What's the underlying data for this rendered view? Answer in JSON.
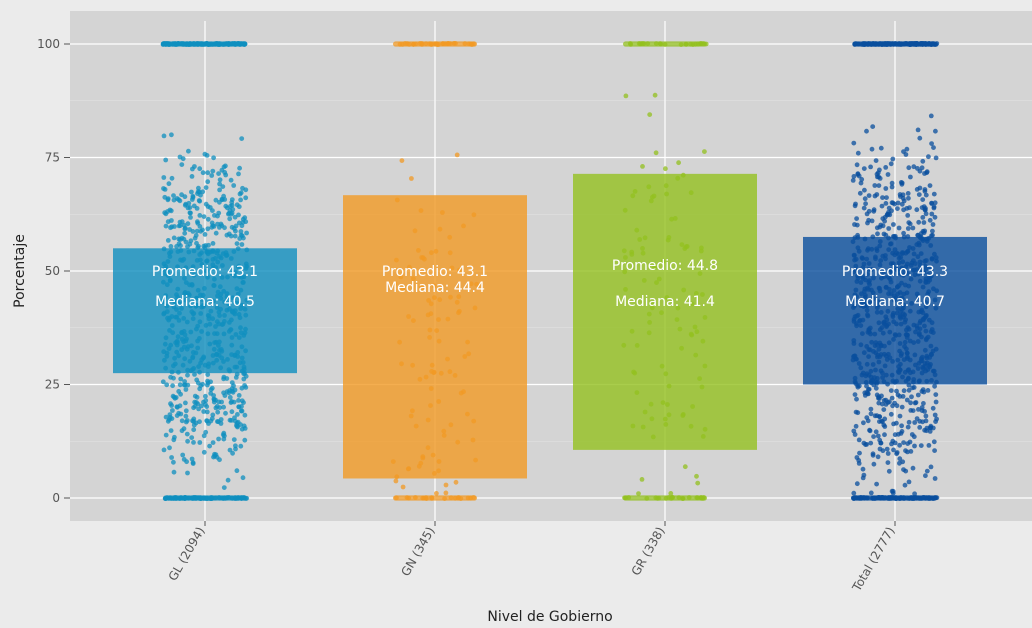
{
  "chart_data": {
    "type": "box",
    "xlabel": "Nivel de Gobierno",
    "ylabel": "Porcentaje",
    "ylim": [
      -10,
      105
    ],
    "y_ticks": [
      0,
      25,
      50,
      75,
      100
    ],
    "grid": true,
    "categories": [
      "GL (2094)",
      "GN (345)",
      "GR (338)",
      "Total (2777)"
    ],
    "boxes": [
      {
        "category": "GL (2094)",
        "q1": 27.5,
        "q3": 55.0,
        "mean": 43.1,
        "median": 40.5,
        "mean_label": "Promedio: 43.1",
        "median_label": "Mediana: 40.5",
        "n": 2094,
        "color": "#0f8fbf"
      },
      {
        "category": "GN (345)",
        "q1": 4.3,
        "q3": 66.7,
        "mean": 43.1,
        "median": 44.4,
        "mean_label": "Promedio: 43.1",
        "median_label": "Mediana: 44.4",
        "n": 345,
        "color": "#f19a24"
      },
      {
        "category": "GR (338)",
        "q1": 10.6,
        "q3": 71.4,
        "mean": 44.8,
        "median": 41.4,
        "mean_label": "Promedio: 44.8",
        "median_label": "Mediana: 41.4",
        "n": 338,
        "color": "#93c01f"
      },
      {
        "category": "Total (2777)",
        "q1": 25.0,
        "q3": 57.5,
        "mean": 43.3,
        "median": 40.7,
        "mean_label": "Promedio: 43.3",
        "median_label": "Mediana: 40.7",
        "n": 2777,
        "color": "#0a4f9e"
      }
    ]
  }
}
